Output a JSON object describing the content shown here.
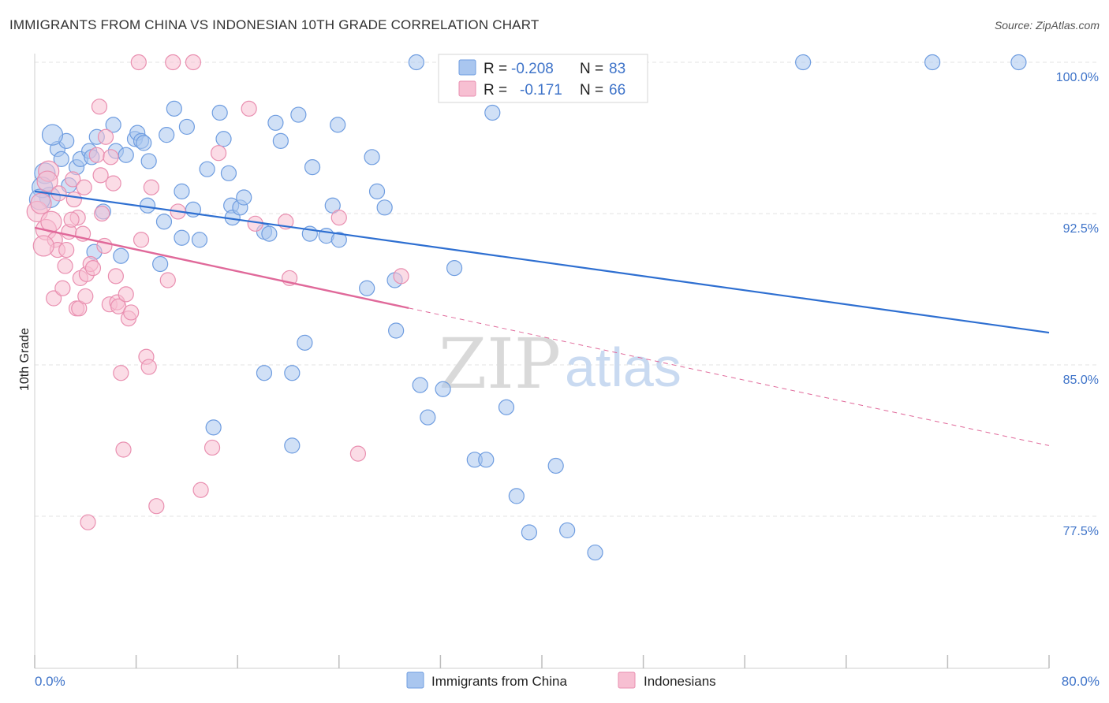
{
  "title": "IMMIGRANTS FROM CHINA VS INDONESIAN 10TH GRADE CORRELATION CHART",
  "source": "Source: ZipAtlas.com",
  "watermark": {
    "zip": "ZIP",
    "atlas": "atlas"
  },
  "colors": {
    "blue_fill": "#a9c6ef",
    "blue_stroke": "#6f9de0",
    "blue_line": "#2e6fd1",
    "pink_fill": "#f7bfd2",
    "pink_stroke": "#e98fb0",
    "pink_line": "#e0699a",
    "grid": "#e3e3e3",
    "tick_label": "#3f74c9"
  },
  "legend_top": {
    "rows": [
      {
        "r_label": "R = ",
        "r_value": "-0.208",
        "n_label": "N = ",
        "n_value": "83"
      },
      {
        "r_label": "R = ",
        "r_value": "-0.171",
        "n_label": "N = ",
        "n_value": "66"
      }
    ]
  },
  "legend_bottom": [
    "Immigrants from China",
    "Indonesians"
  ],
  "chart_data": {
    "type": "scatter",
    "title": "IMMIGRANTS FROM CHINA VS INDONESIAN 10TH GRADE CORRELATION CHART",
    "xlabel": "",
    "ylabel": "10th Grade",
    "xlim": [
      0,
      80
    ],
    "ylim": [
      71.0,
      100.5
    ],
    "x_tick_labels": [
      "0.0%",
      "80.0%"
    ],
    "y_ticks": [
      77.5,
      85.0,
      92.5,
      100.0
    ],
    "y_tick_labels": [
      "77.5%",
      "85.0%",
      "92.5%",
      "100.0%"
    ],
    "grid": true,
    "legend_position": "top-center",
    "series": [
      {
        "name": "Immigrants from China",
        "R": -0.208,
        "N": 83,
        "trend": {
          "x0": 0,
          "y0": 93.6,
          "x1": 80,
          "y1": 86.6,
          "dashed_from": null
        },
        "points": [
          [
            0.8,
            94.5
          ],
          [
            1.2,
            93.3
          ],
          [
            1.8,
            95.7
          ],
          [
            2.1,
            95.2
          ],
          [
            2.5,
            96.1
          ],
          [
            3.3,
            94.8
          ],
          [
            3.6,
            95.2
          ],
          [
            4.3,
            95.6
          ],
          [
            4.5,
            95.3
          ],
          [
            4.9,
            96.3
          ],
          [
            5.4,
            92.6
          ],
          [
            6.2,
            96.9
          ],
          [
            6.4,
            95.6
          ],
          [
            7.2,
            95.4
          ],
          [
            7.9,
            96.2
          ],
          [
            8.1,
            96.5
          ],
          [
            8.4,
            96.1
          ],
          [
            8.6,
            96.0
          ],
          [
            9.0,
            95.1
          ],
          [
            10.4,
            96.4
          ],
          [
            11.0,
            97.7
          ],
          [
            11.6,
            93.6
          ],
          [
            12.0,
            96.8
          ],
          [
            12.5,
            92.7
          ],
          [
            13.6,
            94.7
          ],
          [
            14.6,
            97.5
          ],
          [
            14.9,
            96.2
          ],
          [
            15.3,
            94.5
          ],
          [
            15.5,
            92.9
          ],
          [
            15.6,
            92.3
          ],
          [
            16.2,
            92.8
          ],
          [
            16.5,
            93.3
          ],
          [
            18.1,
            91.6
          ],
          [
            18.5,
            91.5
          ],
          [
            19.0,
            97.0
          ],
          [
            19.4,
            96.1
          ],
          [
            20.8,
            97.4
          ],
          [
            21.7,
            91.5
          ],
          [
            21.9,
            94.8
          ],
          [
            23.0,
            91.4
          ],
          [
            23.5,
            92.9
          ],
          [
            23.9,
            96.9
          ],
          [
            24.0,
            91.2
          ],
          [
            26.2,
            88.8
          ],
          [
            26.6,
            95.3
          ],
          [
            27.0,
            93.6
          ],
          [
            27.6,
            92.8
          ],
          [
            28.4,
            89.2
          ],
          [
            28.5,
            86.7
          ],
          [
            30.1,
            100.0
          ],
          [
            30.4,
            84.0
          ],
          [
            31.0,
            82.4
          ],
          [
            32.2,
            83.8
          ],
          [
            33.1,
            89.8
          ],
          [
            34.7,
            80.3
          ],
          [
            35.6,
            80.3
          ],
          [
            36.1,
            97.5
          ],
          [
            37.2,
            82.9
          ],
          [
            38.0,
            78.5
          ],
          [
            39.0,
            76.7
          ],
          [
            41.1,
            80.0
          ],
          [
            42.0,
            76.8
          ],
          [
            44.2,
            75.7
          ],
          [
            46.6,
            100.0
          ],
          [
            60.6,
            100.0
          ],
          [
            70.8,
            100.0
          ],
          [
            77.6,
            100.0
          ],
          [
            18.1,
            84.6
          ],
          [
            20.3,
            84.6
          ],
          [
            14.1,
            81.9
          ],
          [
            20.3,
            81.0
          ],
          [
            21.3,
            86.1
          ],
          [
            13.0,
            91.2
          ],
          [
            11.6,
            91.3
          ],
          [
            10.2,
            92.1
          ],
          [
            9.9,
            90.0
          ],
          [
            6.8,
            90.4
          ],
          [
            4.7,
            90.6
          ],
          [
            2.7,
            93.9
          ],
          [
            0.6,
            93.8
          ],
          [
            0.4,
            93.2
          ],
          [
            1.4,
            96.4
          ],
          [
            8.9,
            92.9
          ]
        ]
      },
      {
        "name": "Indonesians",
        "R": -0.171,
        "N": 66,
        "trend": {
          "x0": 0,
          "y0": 91.8,
          "x1": 80,
          "y1": 81.0,
          "dashed_from": 29.5
        },
        "points": [
          [
            0.2,
            92.6
          ],
          [
            0.5,
            93.0
          ],
          [
            0.9,
            91.7
          ],
          [
            1.1,
            94.6
          ],
          [
            1.3,
            92.1
          ],
          [
            1.5,
            88.3
          ],
          [
            1.6,
            91.2
          ],
          [
            1.8,
            90.7
          ],
          [
            2.2,
            88.8
          ],
          [
            2.4,
            89.9
          ],
          [
            2.5,
            90.7
          ],
          [
            2.7,
            91.6
          ],
          [
            3.0,
            94.2
          ],
          [
            3.1,
            93.2
          ],
          [
            3.3,
            87.8
          ],
          [
            3.5,
            87.8
          ],
          [
            3.4,
            92.3
          ],
          [
            3.6,
            89.3
          ],
          [
            3.8,
            91.5
          ],
          [
            4.1,
            89.5
          ],
          [
            4.4,
            90.0
          ],
          [
            4.6,
            89.8
          ],
          [
            4.9,
            95.4
          ],
          [
            5.1,
            97.8
          ],
          [
            5.2,
            94.4
          ],
          [
            5.3,
            92.5
          ],
          [
            5.5,
            90.9
          ],
          [
            5.6,
            96.3
          ],
          [
            5.9,
            88.0
          ],
          [
            6.2,
            94.0
          ],
          [
            6.4,
            89.4
          ],
          [
            6.5,
            88.1
          ],
          [
            6.6,
            87.9
          ],
          [
            6.8,
            84.6
          ],
          [
            7.0,
            80.8
          ],
          [
            7.2,
            88.5
          ],
          [
            7.4,
            87.3
          ],
          [
            7.6,
            87.6
          ],
          [
            8.2,
            100.0
          ],
          [
            8.4,
            91.2
          ],
          [
            8.8,
            85.4
          ],
          [
            9.0,
            84.9
          ],
          [
            9.2,
            93.8
          ],
          [
            9.6,
            78.0
          ],
          [
            10.5,
            89.2
          ],
          [
            10.9,
            100.0
          ],
          [
            11.3,
            92.6
          ],
          [
            12.5,
            100.0
          ],
          [
            13.1,
            78.8
          ],
          [
            14.0,
            80.9
          ],
          [
            14.5,
            95.5
          ],
          [
            16.9,
            97.7
          ],
          [
            17.4,
            92.0
          ],
          [
            19.8,
            92.1
          ],
          [
            20.1,
            89.3
          ],
          [
            24.0,
            92.3
          ],
          [
            25.5,
            80.6
          ],
          [
            28.9,
            89.4
          ],
          [
            4.2,
            77.2
          ],
          [
            1.0,
            94.1
          ],
          [
            2.9,
            92.2
          ],
          [
            3.9,
            93.8
          ],
          [
            6.0,
            95.3
          ],
          [
            0.7,
            90.9
          ],
          [
            1.9,
            93.5
          ],
          [
            4.0,
            88.4
          ]
        ]
      }
    ]
  }
}
